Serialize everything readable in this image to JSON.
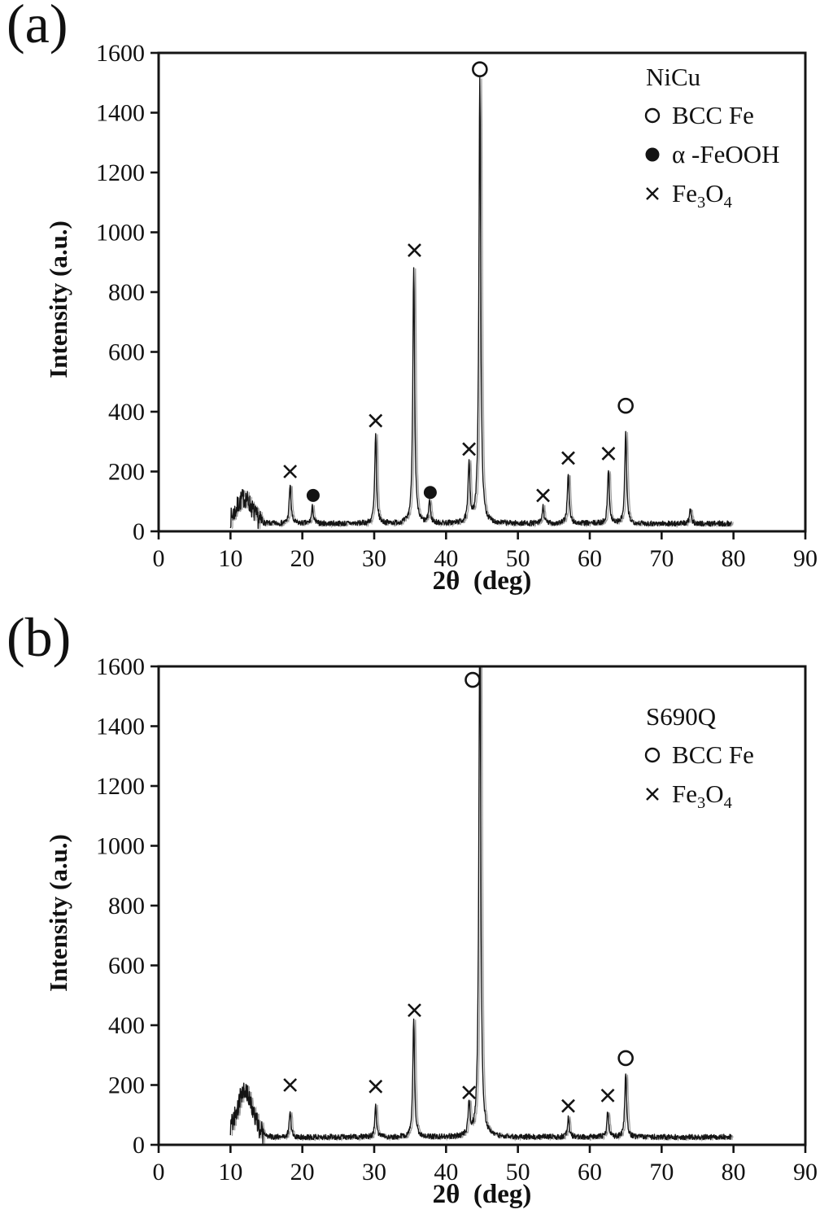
{
  "figure": {
    "panels": [
      {
        "label": "(a)",
        "legend": {
          "title": "NiCu",
          "items": [
            {
              "symbol": "circle-open",
              "label": "BCC Fe"
            },
            {
              "symbol": "circle-filled",
              "label": "α -FeOOH"
            },
            {
              "symbol": "x",
              "label": "Fe₃O₄"
            }
          ]
        }
      },
      {
        "label": "(b)",
        "legend": {
          "title": "S690Q",
          "items": [
            {
              "symbol": "circle-open",
              "label": "BCC Fe"
            },
            {
              "symbol": "x",
              "label": "Fe₃O₄"
            }
          ]
        }
      }
    ]
  },
  "chart_data": [
    {
      "type": "line",
      "title": "NiCu",
      "xlabel": "2θ  (deg)",
      "ylabel": "Intensity (a.u.)",
      "xlim": [
        0,
        90
      ],
      "ylim": [
        0,
        1600
      ],
      "x_ticks": [
        0,
        10,
        20,
        30,
        40,
        50,
        60,
        70,
        80,
        90
      ],
      "y_ticks": [
        0,
        200,
        400,
        600,
        800,
        1000,
        1200,
        1400,
        1600
      ],
      "grid": false,
      "legend_position": "top-right",
      "trace": {
        "x_start": 10,
        "x_end": 79.7,
        "baseline": 26,
        "noise": 9,
        "hump": {
          "center": 11.9,
          "width": 1.5,
          "height": 85,
          "noise": 24
        }
      },
      "peaks": [
        {
          "two_theta": 18.3,
          "intensity": 130,
          "phase": "Fe3O4"
        },
        {
          "two_theta": 21.4,
          "intensity": 55,
          "phase": "alpha-FeOOH"
        },
        {
          "two_theta": 30.2,
          "intensity": 295,
          "phase": "Fe3O4"
        },
        {
          "two_theta": 35.5,
          "intensity": 860,
          "phase": "Fe3O4"
        },
        {
          "two_theta": 37.7,
          "intensity": 75,
          "phase": "alpha-FeOOH"
        },
        {
          "two_theta": 43.2,
          "intensity": 205,
          "phase": "Fe3O4"
        },
        {
          "two_theta": 44.7,
          "intensity": 1495,
          "phase": "BCC Fe"
        },
        {
          "two_theta": 53.5,
          "intensity": 55,
          "phase": "Fe3O4"
        },
        {
          "two_theta": 57.0,
          "intensity": 170,
          "phase": "Fe3O4"
        },
        {
          "two_theta": 62.6,
          "intensity": 180,
          "phase": "Fe3O4"
        },
        {
          "two_theta": 65.0,
          "intensity": 305,
          "phase": "BCC Fe"
        },
        {
          "two_theta": 74.0,
          "intensity": 45,
          "phase": "unlabeled"
        }
      ],
      "markers": [
        {
          "x": 18.3,
          "y": 200,
          "symbol": "x"
        },
        {
          "x": 21.5,
          "y": 120,
          "symbol": "circle-filled"
        },
        {
          "x": 30.2,
          "y": 370,
          "symbol": "x"
        },
        {
          "x": 35.6,
          "y": 940,
          "symbol": "x"
        },
        {
          "x": 37.8,
          "y": 130,
          "symbol": "circle-filled"
        },
        {
          "x": 43.2,
          "y": 275,
          "symbol": "x"
        },
        {
          "x": 44.7,
          "y": 1545,
          "symbol": "circle-open"
        },
        {
          "x": 53.5,
          "y": 120,
          "symbol": "x"
        },
        {
          "x": 57.0,
          "y": 245,
          "symbol": "x"
        },
        {
          "x": 62.6,
          "y": 260,
          "symbol": "x"
        },
        {
          "x": 65.0,
          "y": 420,
          "symbol": "circle-open"
        }
      ]
    },
    {
      "type": "line",
      "title": "S690Q",
      "xlabel": "2θ  (deg)",
      "ylabel": "Intensity (a.u.)",
      "xlim": [
        0,
        90
      ],
      "ylim": [
        0,
        1600
      ],
      "x_ticks": [
        0,
        10,
        20,
        30,
        40,
        50,
        60,
        70,
        80,
        90
      ],
      "y_ticks": [
        0,
        200,
        400,
        600,
        800,
        1000,
        1200,
        1400,
        1600
      ],
      "grid": false,
      "legend_position": "top-right",
      "trace": {
        "x_start": 10,
        "x_end": 79.7,
        "baseline": 26,
        "noise": 9,
        "hump": {
          "center": 12.0,
          "width": 1.6,
          "height": 150,
          "noise": 26
        }
      },
      "peaks": [
        {
          "two_theta": 18.3,
          "intensity": 85,
          "phase": "Fe3O4"
        },
        {
          "two_theta": 30.2,
          "intensity": 105,
          "phase": "Fe3O4"
        },
        {
          "two_theta": 35.5,
          "intensity": 395,
          "phase": "Fe3O4"
        },
        {
          "two_theta": 43.2,
          "intensity": 105,
          "phase": "Fe3O4"
        },
        {
          "two_theta": 44.7,
          "intensity": 1850,
          "phase": "BCC Fe",
          "clipped_at": 1600
        },
        {
          "two_theta": 57.0,
          "intensity": 65,
          "phase": "Fe3O4"
        },
        {
          "two_theta": 62.5,
          "intensity": 85,
          "phase": "Fe3O4"
        },
        {
          "two_theta": 65.0,
          "intensity": 215,
          "phase": "BCC Fe"
        }
      ],
      "markers": [
        {
          "x": 18.3,
          "y": 200,
          "symbol": "x"
        },
        {
          "x": 30.2,
          "y": 195,
          "symbol": "x"
        },
        {
          "x": 35.6,
          "y": 450,
          "symbol": "x"
        },
        {
          "x": 43.2,
          "y": 175,
          "symbol": "x"
        },
        {
          "x": 43.7,
          "y": 1555,
          "symbol": "circle-open"
        },
        {
          "x": 57.0,
          "y": 130,
          "symbol": "x"
        },
        {
          "x": 62.5,
          "y": 165,
          "symbol": "x"
        },
        {
          "x": 65.0,
          "y": 290,
          "symbol": "circle-open"
        }
      ]
    }
  ]
}
